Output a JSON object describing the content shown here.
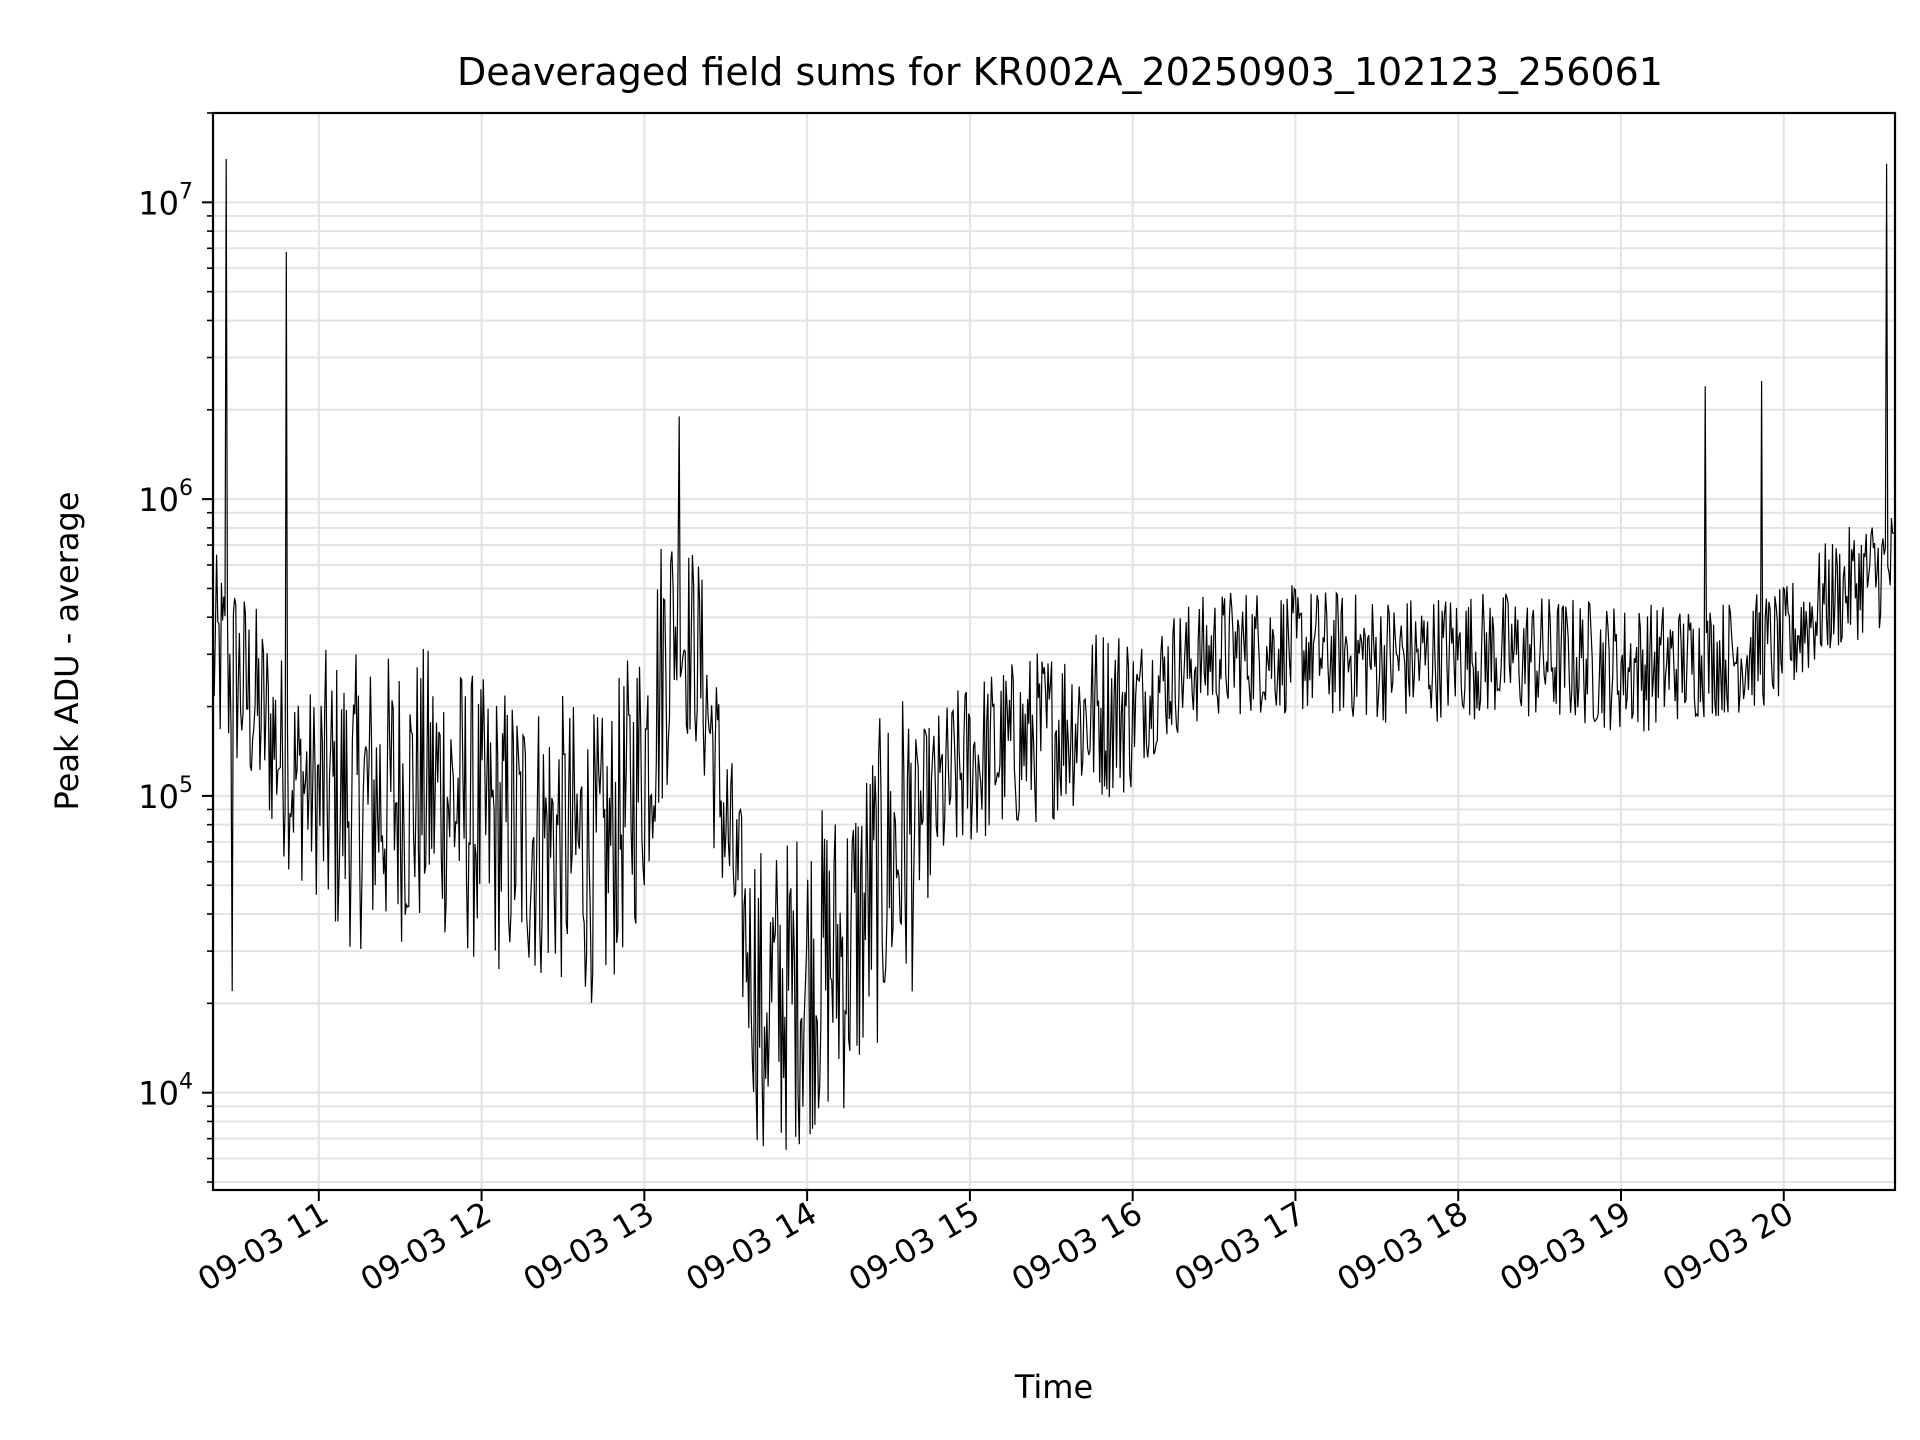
{
  "chart_data": {
    "type": "line",
    "title": "Deaveraged field sums for KR002A_20250903_102123_256061",
    "xlabel": "Time",
    "ylabel": "Peak ADU - average",
    "yscale": "log",
    "ylim": [
      4700,
      20000000
    ],
    "xlim": [
      "2025-09-03 10:21",
      "2025-09-03 20:41"
    ],
    "grid": true,
    "line_color": "#000000",
    "x_ticks": [
      "09-03 11",
      "09-03 12",
      "09-03 13",
      "09-03 14",
      "09-03 15",
      "09-03 16",
      "09-03 17",
      "09-03 18",
      "09-03 19",
      "09-03 20"
    ],
    "y_ticks": [
      {
        "base": "10",
        "exp": "4",
        "value": 10000
      },
      {
        "base": "10",
        "exp": "5",
        "value": 100000
      },
      {
        "base": "10",
        "exp": "6",
        "value": 1000000
      },
      {
        "base": "10",
        "exp": "7",
        "value": 10000000
      }
    ],
    "series": [
      {
        "x": [
          "2025-09-03 10:21",
          "2025-09-03 10:30",
          "2025-09-03 10:40",
          "2025-09-03 10:50",
          "2025-09-03 11:00",
          "2025-09-03 11:15",
          "2025-09-03 11:30",
          "2025-09-03 11:45",
          "2025-09-03 12:00",
          "2025-09-03 12:15",
          "2025-09-03 12:30",
          "2025-09-03 12:45",
          "2025-09-03 13:00",
          "2025-09-03 13:10",
          "2025-09-03 13:20",
          "2025-09-03 13:30",
          "2025-09-03 13:40",
          "2025-09-03 13:50",
          "2025-09-03 14:00",
          "2025-09-03 14:15",
          "2025-09-03 14:30",
          "2025-09-03 14:45",
          "2025-09-03 15:00",
          "2025-09-03 15:15",
          "2025-09-03 15:30",
          "2025-09-03 15:45",
          "2025-09-03 16:00",
          "2025-09-03 16:15",
          "2025-09-03 16:30",
          "2025-09-03 16:45",
          "2025-09-03 17:00",
          "2025-09-03 17:15",
          "2025-09-03 17:30",
          "2025-09-03 17:45",
          "2025-09-03 18:00",
          "2025-09-03 18:15",
          "2025-09-03 18:30",
          "2025-09-03 18:45",
          "2025-09-03 19:00",
          "2025-09-03 19:15",
          "2025-09-03 19:30",
          "2025-09-03 19:45",
          "2025-09-03 20:00",
          "2025-09-03 20:15",
          "2025-09-03 20:30",
          "2025-09-03 20:41"
        ],
        "y": [
          300000,
          250000,
          180000,
          120000,
          100000,
          95000,
          100000,
          105000,
          80000,
          75000,
          70000,
          60000,
          130000,
          400000,
          300000,
          80000,
          25000,
          20000,
          25000,
          30000,
          60000,
          90000,
          130000,
          145000,
          165000,
          190000,
          200000,
          260000,
          300000,
          310000,
          310000,
          300000,
          290000,
          290000,
          300000,
          300000,
          290000,
          285000,
          270000,
          275000,
          285000,
          300000,
          320000,
          450000,
          550000,
          600000
        ],
        "spikes": [
          {
            "x": "2025-09-03 10:26",
            "y": 14000000
          },
          {
            "x": "2025-09-03 10:48",
            "y": 6800000
          },
          {
            "x": "2025-09-03 13:13",
            "y": 1900000
          },
          {
            "x": "2025-09-03 19:31",
            "y": 2400000
          },
          {
            "x": "2025-09-03 19:52",
            "y": 2500000
          },
          {
            "x": "2025-09-03 20:38",
            "y": 13500000
          }
        ],
        "dips": [
          {
            "x": "2025-09-03 10:28",
            "y": 22000
          },
          {
            "x": "2025-09-03 13:44",
            "y": 6600
          }
        ]
      }
    ]
  }
}
